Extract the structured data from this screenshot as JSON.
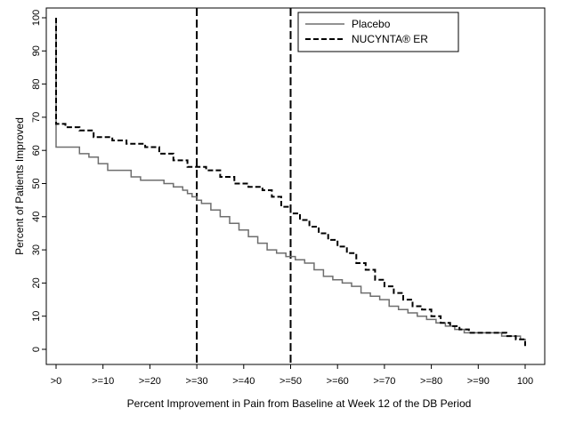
{
  "chart_data": {
    "type": "line",
    "xlabel": "Percent Improvement in Pain from Baseline at Week 12 of the DB Period",
    "ylabel": "Percent of Patients Improved",
    "xlim": [
      0,
      100
    ],
    "ylim": [
      0,
      100
    ],
    "x_ticks": [
      {
        "value": 0,
        "label": ">0"
      },
      {
        "value": 10,
        "label": ">=10"
      },
      {
        "value": 20,
        "label": ">=20"
      },
      {
        "value": 30,
        "label": ">=30"
      },
      {
        "value": 40,
        "label": ">=40"
      },
      {
        "value": 50,
        "label": ">=50"
      },
      {
        "value": 60,
        "label": ">=60"
      },
      {
        "value": 70,
        "label": ">=70"
      },
      {
        "value": 80,
        "label": ">=80"
      },
      {
        "value": 90,
        "label": ">=90"
      },
      {
        "value": 100,
        "label": "100"
      }
    ],
    "y_ticks": [
      0,
      10,
      20,
      30,
      40,
      50,
      60,
      70,
      80,
      90,
      100
    ],
    "reference_lines_x": [
      30,
      50
    ],
    "legend_position": "top-right",
    "grid": false,
    "series": [
      {
        "name": "Placebo",
        "color": "#6e6e6e",
        "style": "solid",
        "x": [
          0,
          0,
          3,
          5,
          7,
          9,
          11,
          13,
          16,
          18,
          20,
          23,
          25,
          27,
          28,
          29,
          30,
          31,
          33,
          35,
          37,
          39,
          41,
          43,
          45,
          47,
          49,
          51,
          53,
          55,
          57,
          59,
          61,
          63,
          65,
          67,
          69,
          71,
          73,
          75,
          77,
          79,
          81,
          83,
          85,
          87,
          89,
          91,
          93,
          95,
          97,
          99,
          100
        ],
        "y": [
          100,
          61,
          61,
          59,
          58,
          56,
          54,
          54,
          52,
          51,
          51,
          50,
          49,
          48,
          47,
          46,
          45,
          44,
          42,
          40,
          38,
          36,
          34,
          32,
          30,
          29,
          28,
          27,
          26,
          24,
          22,
          21,
          20,
          19,
          17,
          16,
          15,
          13,
          12,
          11,
          10,
          9,
          8,
          7,
          6,
          5,
          5,
          5,
          5,
          4,
          4,
          3,
          2
        ]
      },
      {
        "name": "NUCYNTA® ER",
        "color": "#000000",
        "style": "dashed",
        "x": [
          0,
          0,
          2,
          5,
          8,
          12,
          15,
          19,
          22,
          25,
          28,
          30,
          32,
          35,
          38,
          41,
          44,
          46,
          48,
          50,
          52,
          54,
          56,
          58,
          60,
          62,
          64,
          66,
          68,
          70,
          72,
          74,
          76,
          78,
          80,
          82,
          84,
          86,
          88,
          90,
          92,
          94,
          96,
          98,
          100
        ],
        "y": [
          100,
          68,
          67,
          66,
          64,
          63,
          62,
          61,
          59,
          57,
          55,
          55,
          54,
          52,
          50,
          49,
          48,
          46,
          43,
          41,
          39,
          37,
          35,
          33,
          31,
          29,
          26,
          24,
          21,
          19,
          17,
          15,
          13,
          12,
          10,
          8,
          7,
          6,
          5,
          5,
          5,
          5,
          4,
          3,
          1
        ]
      }
    ]
  }
}
